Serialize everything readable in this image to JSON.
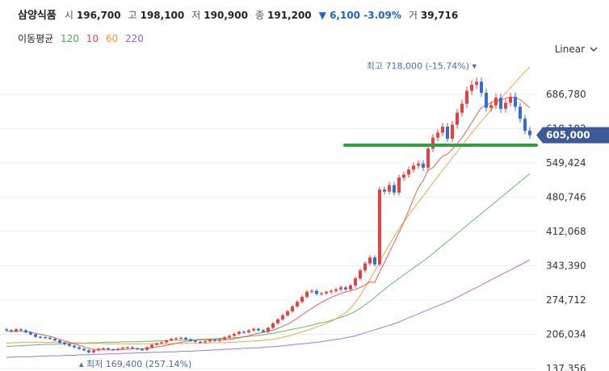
{
  "header": {
    "name": "삼양식품",
    "open_label": "시",
    "open": "196,700",
    "high_label": "고",
    "high": "198,100",
    "low_label": "저",
    "low": "190,900",
    "close_label": "종",
    "close": "191,200",
    "change": "6,100",
    "change_pct": "-3.09%",
    "volume_label": "거",
    "volume": "39,716",
    "change_color": "#1f5fd1"
  },
  "moving_averages": {
    "label": "이동평균",
    "items": [
      {
        "period": "120",
        "color": "#3cb44b"
      },
      {
        "period": "10",
        "color": "#e84040"
      },
      {
        "period": "60",
        "color": "#f5922b"
      },
      {
        "period": "220",
        "color": "#9b59d9"
      }
    ]
  },
  "scale_mode": "Linear",
  "chart_data": {
    "type": "candlestick",
    "y_axis": {
      "ticks": [
        "686,780",
        "618,102",
        "549,424",
        "480,746",
        "412,068",
        "343,390",
        "274,712",
        "206,034",
        "137,356"
      ],
      "ylim": [
        137356,
        755458
      ],
      "side": "right",
      "grid": true
    },
    "current_price": {
      "label": "605,000",
      "value": 605000,
      "color": "#3d5a98"
    },
    "highest": {
      "label": "최고 718,000 (-15.74%)",
      "value": 718000,
      "index": 96
    },
    "lowest": {
      "label": "최저 169,400 (257.14%)",
      "value": 169400,
      "index": 17
    },
    "horizontal_line": {
      "value": 585000,
      "color": "#2ea043"
    },
    "colors": {
      "up": "#e84040",
      "down": "#2f6fd6"
    },
    "closes": [
      214000,
      212000,
      216000,
      214000,
      210000,
      206000,
      201000,
      200000,
      199000,
      197000,
      194000,
      189000,
      186000,
      183000,
      180000,
      177000,
      174000,
      170000,
      174000,
      177000,
      178000,
      176000,
      175000,
      177000,
      179000,
      180000,
      178000,
      176000,
      175000,
      180000,
      185000,
      188000,
      190000,
      194000,
      197000,
      198000,
      199000,
      196000,
      193000,
      191000,
      190000,
      192000,
      195000,
      193000,
      196000,
      200000,
      203000,
      207000,
      211000,
      210000,
      214000,
      217000,
      214000,
      211000,
      219000,
      228000,
      236000,
      244000,
      252000,
      262000,
      271000,
      281000,
      291000,
      293000,
      287000,
      288000,
      291000,
      293000,
      296000,
      300000,
      296000,
      304000,
      318000,
      334000,
      348000,
      360000,
      346000,
      496000,
      492000,
      505000,
      490000,
      520000,
      526000,
      536000,
      544000,
      548000,
      540000,
      578000,
      600000,
      610000,
      622000,
      598000,
      626000,
      650000,
      668000,
      694000,
      706000,
      712000,
      690000,
      660000,
      665000,
      680000,
      658000,
      670000,
      682000,
      662000,
      638000,
      614000,
      605000
    ],
    "ma10": [
      212000,
      212000,
      212000,
      212000,
      211000,
      210000,
      208000,
      206000,
      204000,
      202000,
      199000,
      196000,
      193000,
      190000,
      187000,
      184000,
      181000,
      178000,
      176000,
      175000,
      175000,
      175000,
      175000,
      175000,
      176000,
      176000,
      177000,
      177000,
      177000,
      178000,
      179000,
      181000,
      182000,
      184000,
      186000,
      188000,
      190000,
      192000,
      193000,
      194000,
      195000,
      195000,
      195000,
      195000,
      195000,
      195000,
      196000,
      197000,
      199000,
      201000,
      203000,
      206000,
      208000,
      210000,
      212000,
      214000,
      218000,
      222000,
      226000,
      232000,
      238000,
      245000,
      252000,
      258000,
      264000,
      270000,
      275000,
      280000,
      284000,
      288000,
      291000,
      293000,
      296000,
      300000,
      305000,
      311000,
      310000,
      331000,
      350000,
      370000,
      390000,
      410000,
      431000,
      454000,
      478000,
      500000,
      514000,
      535000,
      540000,
      552000,
      563000,
      567000,
      577000,
      588000,
      600000,
      614000,
      630000,
      646000,
      660000,
      665000,
      670000,
      675000,
      676000,
      679000,
      681000,
      680000,
      676000,
      668000,
      660000
    ],
    "ma60": [
      188000,
      189000,
      189000,
      190000,
      190000,
      190000,
      190000,
      190000,
      190000,
      190000,
      190000,
      190000,
      190000,
      189000,
      189000,
      189000,
      188000,
      188000,
      188000,
      188000,
      188000,
      187000,
      187000,
      187000,
      187000,
      187000,
      187000,
      187000,
      187000,
      187000,
      187000,
      187000,
      187000,
      187000,
      187000,
      188000,
      188000,
      188000,
      188000,
      188000,
      188000,
      188000,
      189000,
      189000,
      189000,
      189000,
      190000,
      190000,
      191000,
      191000,
      192000,
      193000,
      193000,
      194000,
      195000,
      196000,
      198000,
      200000,
      202000,
      205000,
      208000,
      211000,
      214000,
      217000,
      221000,
      224000,
      228000,
      232000,
      237000,
      243000,
      249000,
      258000,
      270000,
      284000,
      300000,
      316000,
      333000,
      351000,
      369000,
      386000,
      402000,
      417000,
      431000,
      445000,
      458000,
      471000,
      483000,
      496000,
      509000,
      522000,
      535000,
      547000,
      560000,
      572000,
      584000,
      597000,
      609000,
      621000,
      633000,
      644000,
      656000,
      667000,
      678000,
      689000,
      700000,
      711000,
      722000,
      732000,
      742000
    ],
    "ma120": [
      182000,
      182000,
      183000,
      183000,
      184000,
      184000,
      185000,
      185000,
      186000,
      186000,
      186000,
      187000,
      187000,
      187000,
      188000,
      188000,
      188000,
      189000,
      189000,
      189000,
      190000,
      190000,
      190000,
      190000,
      191000,
      191000,
      191000,
      191000,
      192000,
      192000,
      192000,
      193000,
      193000,
      193000,
      194000,
      194000,
      194000,
      195000,
      195000,
      195000,
      196000,
      196000,
      197000,
      197000,
      198000,
      198000,
      199000,
      199000,
      200000,
      201000,
      202000,
      203000,
      204000,
      205000,
      207000,
      208000,
      210000,
      212000,
      214000,
      216000,
      218000,
      220000,
      222000,
      224000,
      227000,
      229000,
      231000,
      234000,
      237000,
      240000,
      243000,
      247000,
      252000,
      258000,
      265000,
      272000,
      280000,
      288000,
      296000,
      304000,
      311000,
      318000,
      325000,
      332000,
      339000,
      346000,
      353000,
      360000,
      368000,
      376000,
      384000,
      392000,
      400000,
      408000,
      416000,
      424000,
      432000,
      440000,
      448000,
      456000,
      464000,
      472000,
      480000,
      488000,
      496000,
      504000,
      512000,
      520000,
      528000
    ],
    "ma220": [
      160000,
      160000,
      161000,
      161000,
      161000,
      161000,
      162000,
      162000,
      162000,
      163000,
      163000,
      163000,
      164000,
      164000,
      164000,
      165000,
      165000,
      165000,
      166000,
      166000,
      166000,
      167000,
      167000,
      167000,
      168000,
      168000,
      168000,
      169000,
      169000,
      169000,
      170000,
      170000,
      170000,
      171000,
      171000,
      171000,
      172000,
      172000,
      172000,
      173000,
      173000,
      174000,
      174000,
      175000,
      175000,
      176000,
      176000,
      177000,
      177000,
      178000,
      178000,
      179000,
      179000,
      180000,
      181000,
      181000,
      182000,
      183000,
      184000,
      185000,
      186000,
      187000,
      188000,
      189000,
      190000,
      191000,
      193000,
      194000,
      196000,
      197000,
      199000,
      201000,
      203000,
      206000,
      209000,
      212000,
      215000,
      218000,
      221000,
      224000,
      227000,
      231000,
      235000,
      239000,
      243000,
      247000,
      251000,
      255000,
      259000,
      263000,
      267000,
      271000,
      275000,
      280000,
      285000,
      290000,
      295000,
      300000,
      305000,
      310000,
      315000,
      320000,
      325000,
      330000,
      335000,
      340000,
      345000,
      350000,
      355000
    ]
  }
}
